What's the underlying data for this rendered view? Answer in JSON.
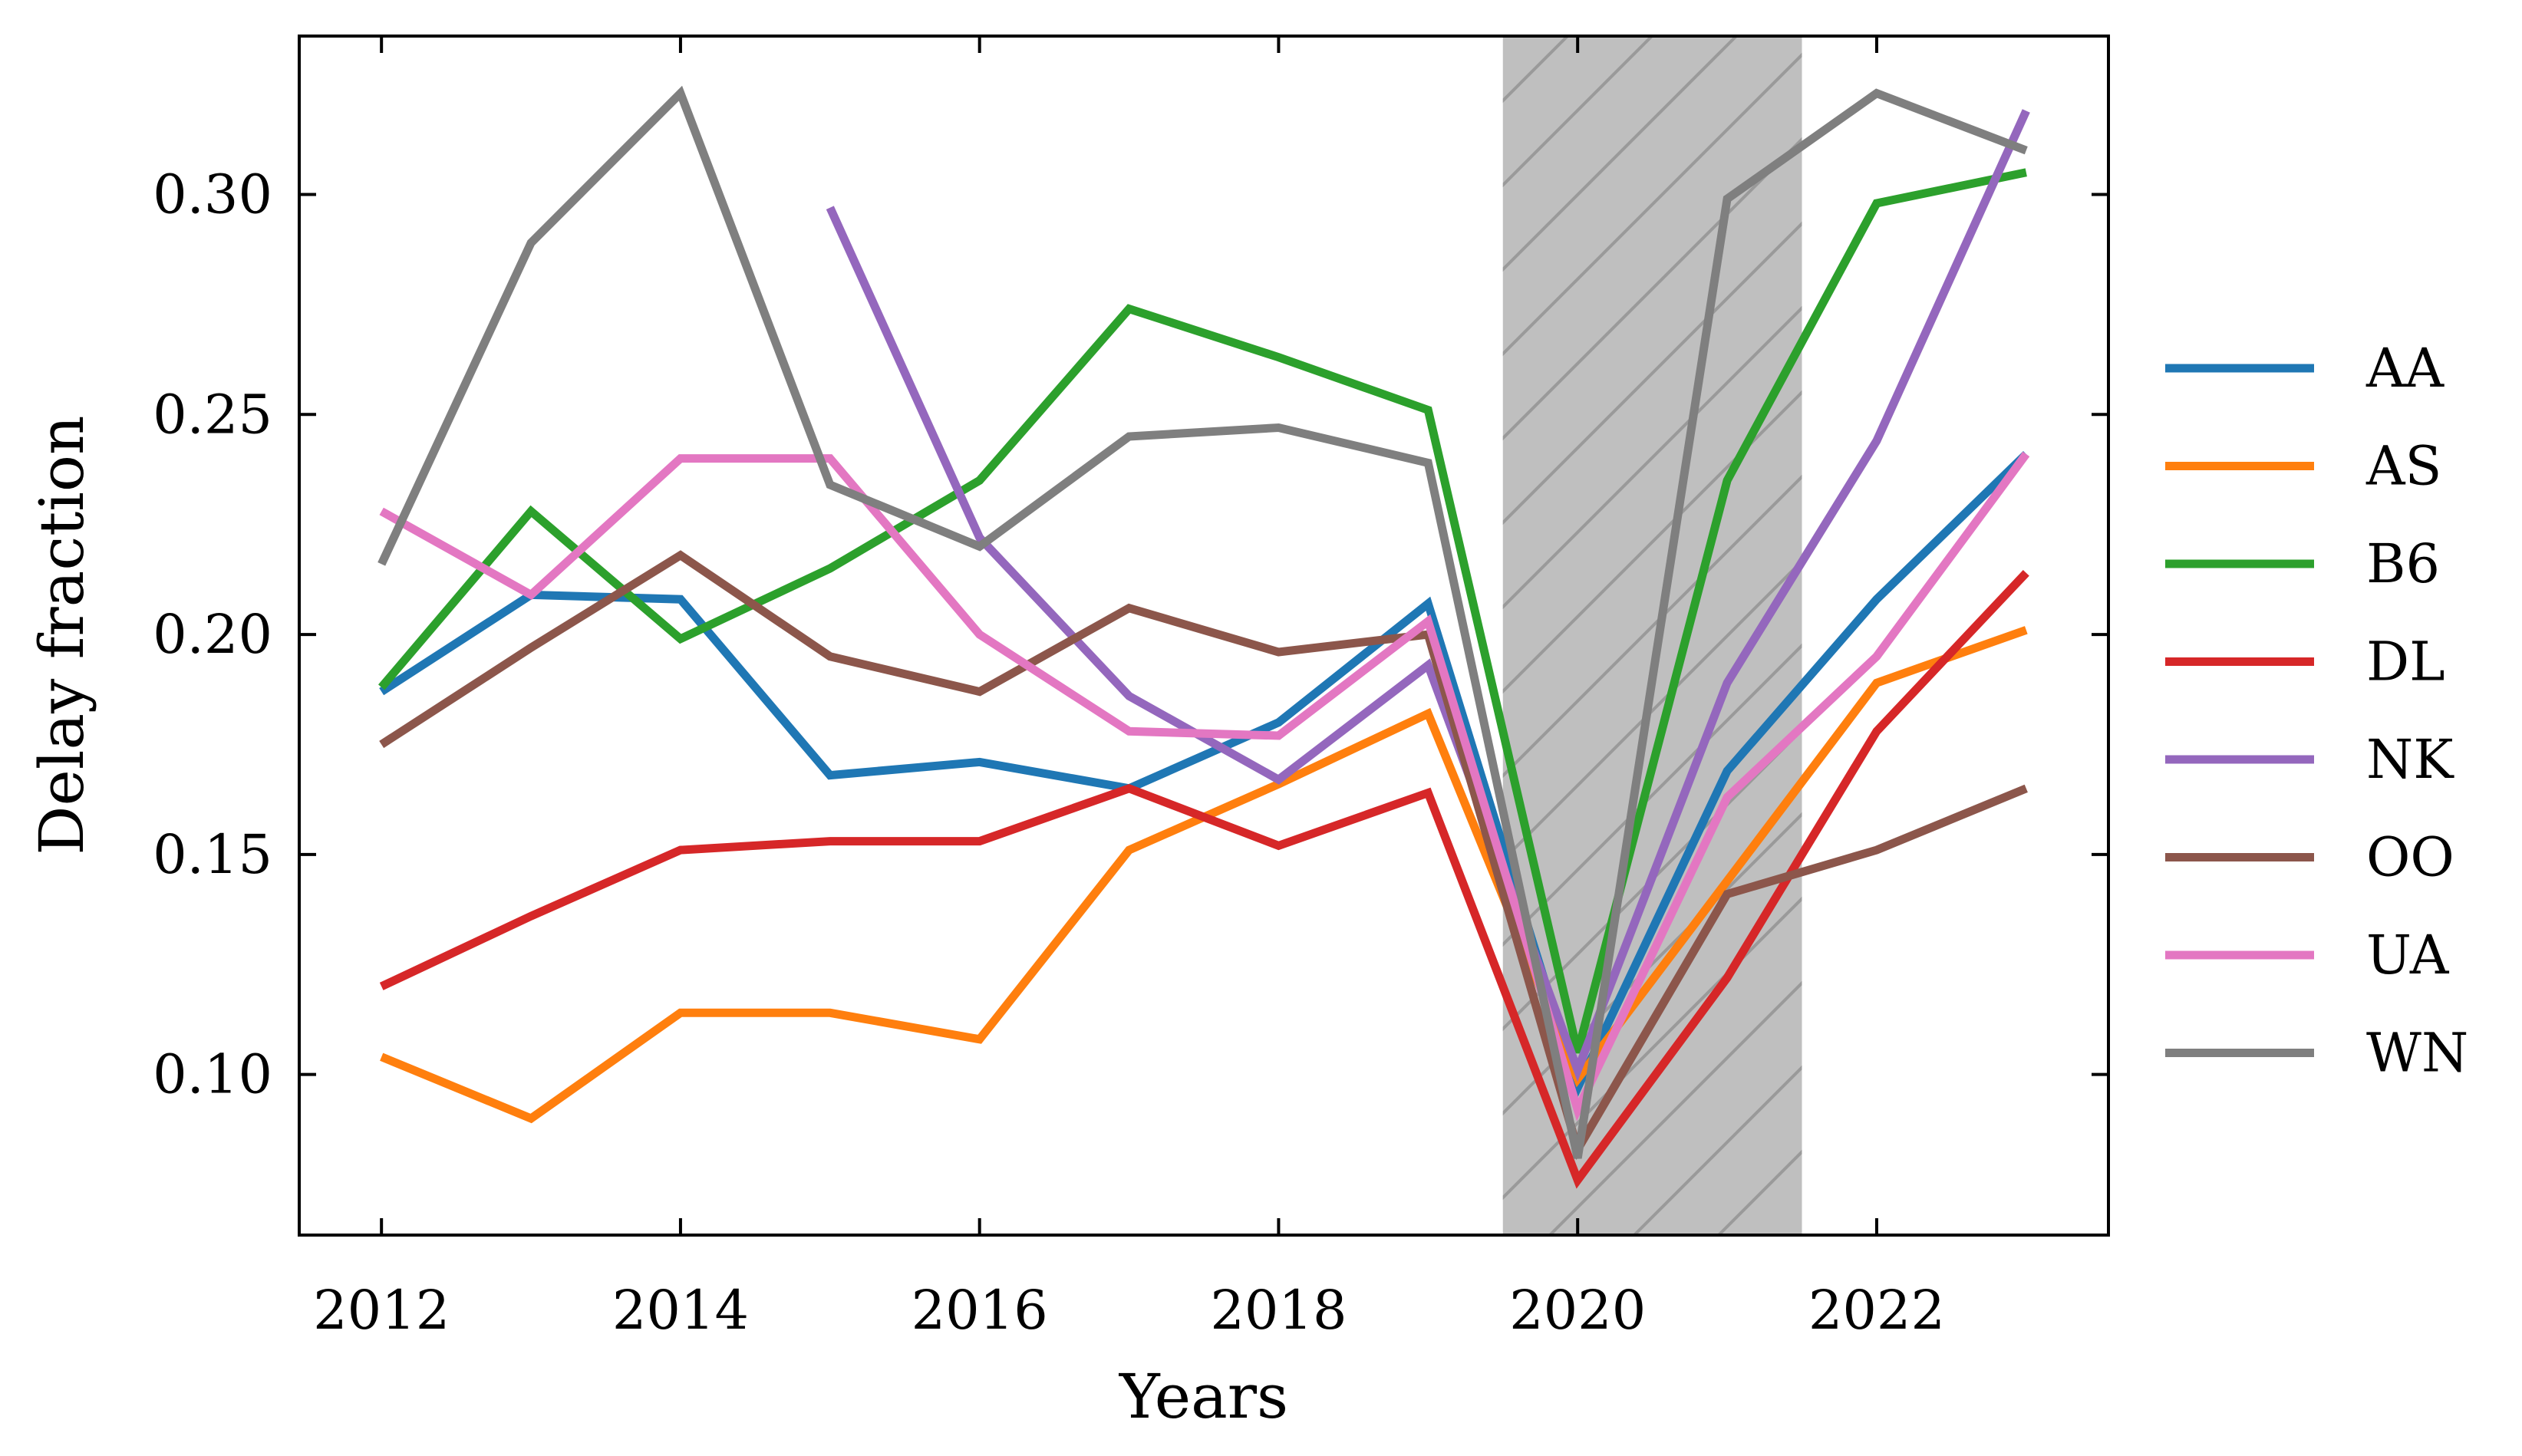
{
  "chart_data": {
    "type": "line",
    "xlabel": "Years",
    "ylabel": "Delay fraction",
    "xlim": [
      2011.45,
      2023.55
    ],
    "ylim": [
      0.0635,
      0.336
    ],
    "x_ticks": [
      2012,
      2014,
      2016,
      2018,
      2020,
      2022
    ],
    "x_tick_labels": [
      "2012",
      "2014",
      "2016",
      "2018",
      "2020",
      "2022"
    ],
    "y_ticks": [
      0.1,
      0.15,
      0.2,
      0.25,
      0.3
    ],
    "y_tick_labels": [
      "0.10",
      "0.15",
      "0.20",
      "0.25",
      "0.30"
    ],
    "legend_position": "right-outside",
    "grid": false,
    "shaded_region": {
      "x_start": 2019.5,
      "x_end": 2021.5,
      "color": "#bfbfbf",
      "hatch": "diagonal"
    },
    "series": [
      {
        "name": "AA",
        "color": "#1f77b4",
        "x": [
          2012,
          2013,
          2014,
          2015,
          2016,
          2017,
          2018,
          2019,
          2020,
          2021,
          2022,
          2023
        ],
        "y": [
          0.187,
          0.209,
          0.208,
          0.168,
          0.171,
          0.165,
          0.18,
          0.207,
          0.097,
          0.169,
          0.208,
          0.241
        ]
      },
      {
        "name": "AS",
        "color": "#ff7f0e",
        "x": [
          2012,
          2013,
          2014,
          2015,
          2016,
          2017,
          2018,
          2019,
          2020,
          2021,
          2022,
          2023
        ],
        "y": [
          0.104,
          0.09,
          0.114,
          0.114,
          0.108,
          0.151,
          0.166,
          0.182,
          0.099,
          0.144,
          0.189,
          0.201
        ]
      },
      {
        "name": "B6",
        "color": "#2ca02c",
        "x": [
          2012,
          2013,
          2014,
          2015,
          2016,
          2017,
          2018,
          2019,
          2020,
          2021,
          2022,
          2023
        ],
        "y": [
          0.188,
          0.228,
          0.199,
          0.215,
          0.235,
          0.274,
          0.263,
          0.251,
          0.105,
          0.235,
          0.298,
          0.305
        ]
      },
      {
        "name": "DL",
        "color": "#d62728",
        "x": [
          2012,
          2013,
          2014,
          2015,
          2016,
          2017,
          2018,
          2019,
          2020,
          2021,
          2022,
          2023
        ],
        "y": [
          0.12,
          0.136,
          0.151,
          0.153,
          0.153,
          0.165,
          0.152,
          0.164,
          0.076,
          0.122,
          0.178,
          0.214
        ]
      },
      {
        "name": "NK",
        "color": "#9467bd",
        "x": [
          2015,
          2016,
          2017,
          2018,
          2019,
          2020,
          2021,
          2022,
          2023
        ],
        "y": [
          0.297,
          0.222,
          0.186,
          0.167,
          0.193,
          0.101,
          0.189,
          0.244,
          0.319
        ]
      },
      {
        "name": "OO",
        "color": "#8c564b",
        "x": [
          2012,
          2013,
          2014,
          2015,
          2016,
          2017,
          2018,
          2019,
          2020,
          2021,
          2022,
          2023
        ],
        "y": [
          0.175,
          0.197,
          0.218,
          0.195,
          0.187,
          0.206,
          0.196,
          0.2,
          0.083,
          0.141,
          0.151,
          0.165
        ]
      },
      {
        "name": "UA",
        "color": "#e377c2",
        "x": [
          2012,
          2013,
          2014,
          2015,
          2016,
          2017,
          2018,
          2019,
          2020,
          2021,
          2022,
          2023
        ],
        "y": [
          0.228,
          0.209,
          0.24,
          0.24,
          0.2,
          0.178,
          0.177,
          0.203,
          0.092,
          0.163,
          0.195,
          0.241
        ]
      },
      {
        "name": "WN",
        "color": "#7f7f7f",
        "x": [
          2012,
          2013,
          2014,
          2015,
          2016,
          2017,
          2018,
          2019,
          2020,
          2021,
          2022,
          2023
        ],
        "y": [
          0.216,
          0.289,
          0.323,
          0.234,
          0.22,
          0.245,
          0.247,
          0.239,
          0.081,
          0.299,
          0.323,
          0.31
        ]
      }
    ]
  }
}
